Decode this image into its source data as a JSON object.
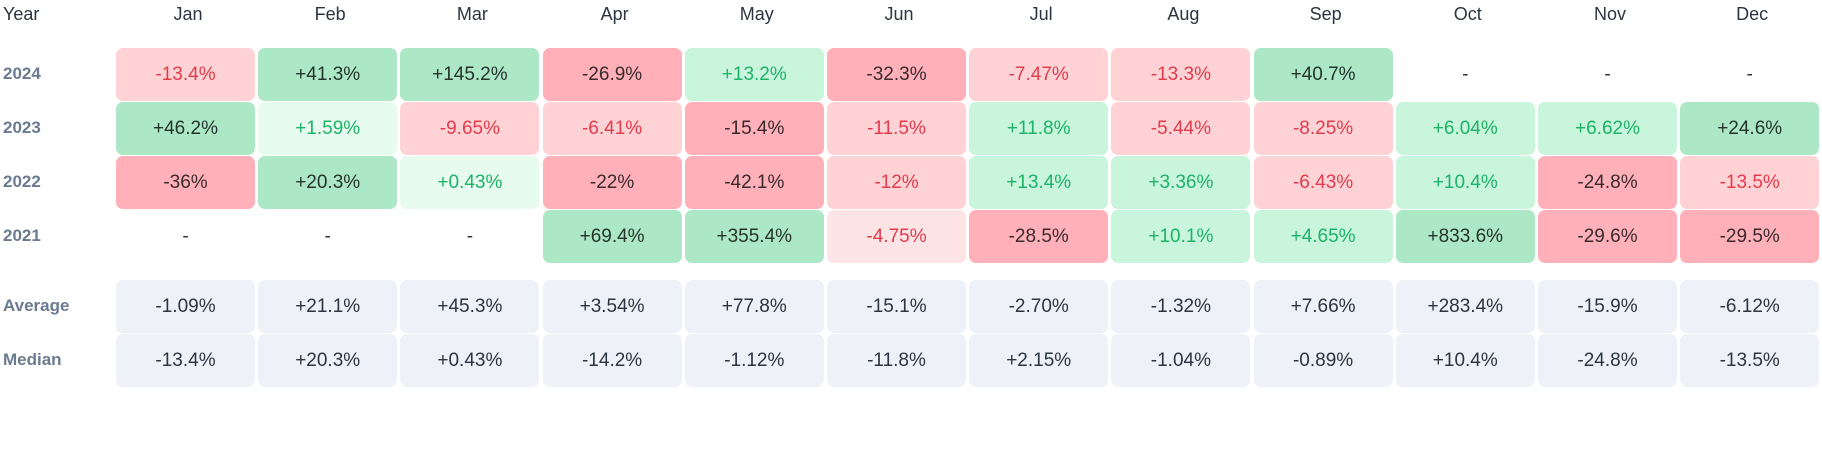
{
  "header": {
    "year_label": "Year",
    "months": [
      "Jan",
      "Feb",
      "Mar",
      "Apr",
      "May",
      "Jun",
      "Jul",
      "Aug",
      "Sep",
      "Oct",
      "Nov",
      "Dec"
    ]
  },
  "rows": [
    {
      "label": "2024",
      "values": [
        "-13.4%",
        "+41.3%",
        "+145.2%",
        "-26.9%",
        "+13.2%",
        "-32.3%",
        "-7.47%",
        "-13.3%",
        "+40.7%",
        "-",
        "-",
        "-"
      ]
    },
    {
      "label": "2023",
      "values": [
        "+46.2%",
        "+1.59%",
        "-9.65%",
        "-6.41%",
        "-15.4%",
        "-11.5%",
        "+11.8%",
        "-5.44%",
        "-8.25%",
        "+6.04%",
        "+6.62%",
        "+24.6%"
      ]
    },
    {
      "label": "2022",
      "values": [
        "-36%",
        "+20.3%",
        "+0.43%",
        "-22%",
        "-42.1%",
        "-12%",
        "+13.4%",
        "+3.36%",
        "-6.43%",
        "+10.4%",
        "-24.8%",
        "-13.5%"
      ]
    },
    {
      "label": "2021",
      "values": [
        "-",
        "-",
        "-",
        "+69.4%",
        "+355.4%",
        "-4.75%",
        "-28.5%",
        "+10.1%",
        "+4.65%",
        "+833.6%",
        "-29.6%",
        "-29.5%"
      ]
    }
  ],
  "stats": [
    {
      "label": "Average",
      "values": [
        "-1.09%",
        "+21.1%",
        "+45.3%",
        "+3.54%",
        "+77.8%",
        "-15.1%",
        "-2.70%",
        "-1.32%",
        "+7.66%",
        "+283.4%",
        "-15.9%",
        "-6.12%"
      ]
    },
    {
      "label": "Median",
      "values": [
        "-13.4%",
        "+20.3%",
        "+0.43%",
        "-14.2%",
        "-1.12%",
        "-11.8%",
        "+2.15%",
        "-1.04%",
        "-0.89%",
        "+10.4%",
        "-24.8%",
        "-13.5%"
      ]
    }
  ],
  "colors": {
    "negative_light": "#ffd3d6",
    "negative_strong": "#ffb0b8",
    "positive_light": "#c8f5dc",
    "positive_strong": "#ade8c6",
    "stat_background": "#eef2f8"
  }
}
